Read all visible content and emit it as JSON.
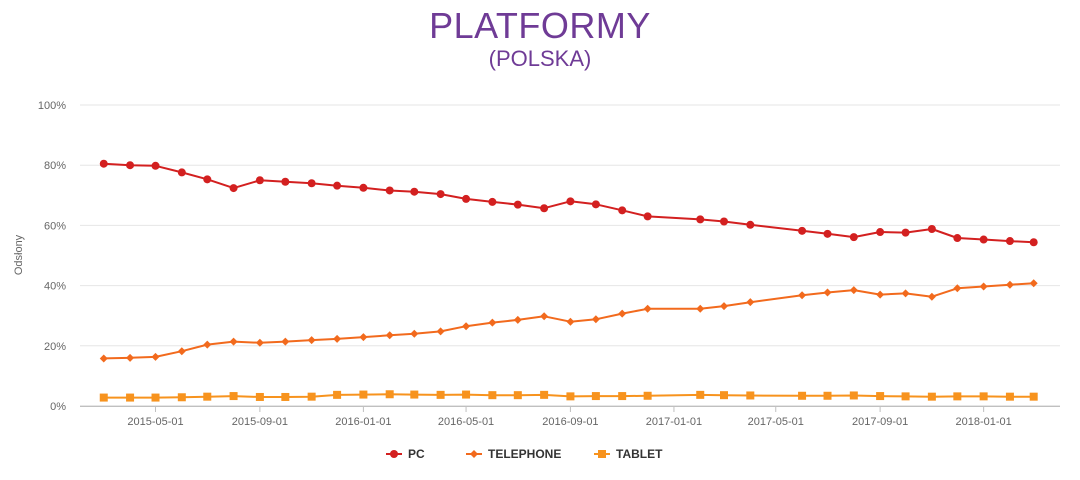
{
  "chart_data": {
    "type": "line",
    "title": "PLATFORMY",
    "subtitle": "(POLSKA)",
    "ylabel": "Odsłony",
    "xlabel": "",
    "ylim": [
      0,
      100
    ],
    "y_ticks": [
      "0%",
      "20%",
      "40%",
      "60%",
      "80%",
      "100%"
    ],
    "x_ticks": [
      "2015-05-01",
      "2015-09-01",
      "2016-01-01",
      "2016-05-01",
      "2016-09-01",
      "2017-01-01",
      "2017-05-01",
      "2017-09-01",
      "2018-01-01"
    ],
    "x": [
      "2015-03-01",
      "2015-04-01",
      "2015-05-01",
      "2015-06-01",
      "2015-07-01",
      "2015-08-01",
      "2015-09-01",
      "2015-10-01",
      "2015-11-01",
      "2015-12-01",
      "2016-01-01",
      "2016-02-01",
      "2016-03-01",
      "2016-04-01",
      "2016-05-01",
      "2016-06-01",
      "2016-07-01",
      "2016-08-01",
      "2016-09-01",
      "2016-10-01",
      "2016-11-01",
      "2016-12-01",
      "2017-02-01",
      "2017-03-01",
      "2017-04-01",
      "2017-06-01",
      "2017-07-01",
      "2017-08-01",
      "2017-09-01",
      "2017-10-01",
      "2017-11-01",
      "2017-12-01",
      "2018-01-01",
      "2018-02-01",
      "2018-03-01"
    ],
    "series": [
      {
        "name": "PC",
        "color": "#d32020",
        "marker": "circle",
        "values": [
          80.5,
          80.0,
          79.8,
          77.6,
          75.3,
          72.4,
          75.0,
          74.5,
          74.0,
          73.2,
          72.5,
          71.6,
          71.2,
          70.4,
          68.8,
          67.8,
          66.9,
          65.7,
          68.0,
          67.0,
          65.0,
          63.0,
          62.0,
          61.3,
          60.2,
          58.2,
          57.2,
          56.1,
          57.8,
          57.6,
          58.8,
          55.8,
          55.3,
          54.8,
          54.4
        ]
      },
      {
        "name": "TELEPHONE",
        "color": "#f26a1d",
        "marker": "diamond",
        "values": [
          15.8,
          16.0,
          16.3,
          18.2,
          20.4,
          21.4,
          21.0,
          21.4,
          21.9,
          22.3,
          22.9,
          23.5,
          24.0,
          24.8,
          26.5,
          27.7,
          28.6,
          29.8,
          28.0,
          28.8,
          30.7,
          32.3,
          32.3,
          33.2,
          34.5,
          36.8,
          37.7,
          38.5,
          37.0,
          37.4,
          36.3,
          39.1,
          39.7,
          40.3,
          40.8
        ]
      },
      {
        "name": "TABLET",
        "color": "#f7931e",
        "marker": "square",
        "values": [
          2.8,
          2.8,
          2.8,
          2.9,
          3.1,
          3.3,
          3.0,
          3.0,
          3.1,
          3.7,
          3.8,
          3.9,
          3.8,
          3.7,
          3.8,
          3.6,
          3.6,
          3.7,
          3.2,
          3.3,
          3.3,
          3.4,
          3.7,
          3.6,
          3.5,
          3.4,
          3.4,
          3.5,
          3.3,
          3.2,
          3.1,
          3.2,
          3.2,
          3.1,
          3.1
        ]
      }
    ],
    "legend_position": "bottom-center",
    "grid": true
  }
}
